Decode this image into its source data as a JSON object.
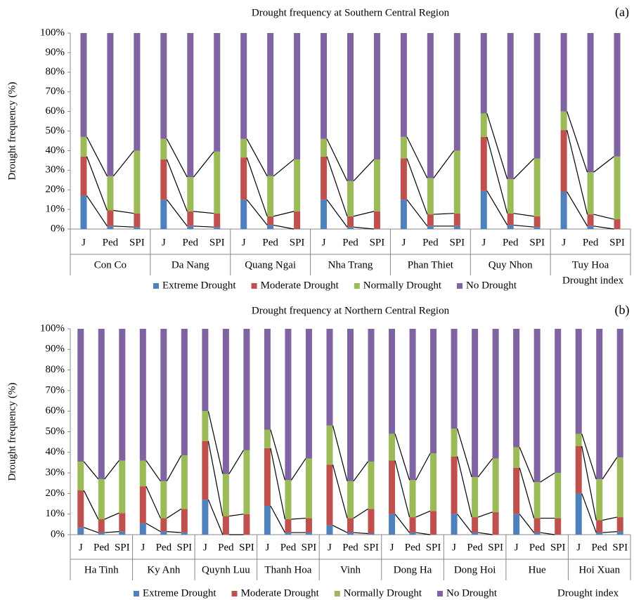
{
  "chart_data": [
    {
      "type": "bar",
      "stacked": true,
      "title": "Drought frequency at Southern Central Region",
      "panel_label": "(a)",
      "y_label": "Drought frequency (%)",
      "x_label": "Drought index",
      "categories": [
        "J",
        "Ped",
        "SPI",
        "J",
        "Ped",
        "SPI",
        "J",
        "Ped",
        "SPI",
        "J",
        "Ped",
        "SPI",
        "J",
        "Ped",
        "SPI",
        "J",
        "Ped",
        "SPI",
        "J",
        "Ped",
        "SPI"
      ],
      "groups": [
        "Con Co",
        "Da Nang",
        "Quang Ngai",
        "Nha Trang",
        "Phan Thiet",
        "Quy Nhon",
        "Tuy Hoa"
      ],
      "series": [
        {
          "name": "Extreme Drought",
          "color": "#4f81bd",
          "values": [
            17,
            1.5,
            1,
            15,
            1.5,
            1,
            15,
            2,
            0,
            15,
            1,
            0,
            15,
            1.5,
            1.5,
            19.5,
            2,
            1,
            19,
            1.5,
            0
          ]
        },
        {
          "name": "Moderate Drought",
          "color": "#c0504d",
          "values": [
            20,
            8,
            7,
            20.5,
            7.5,
            7,
            21.5,
            4.5,
            9,
            22,
            5.5,
            9,
            21,
            6,
            6.5,
            27.5,
            6,
            5.5,
            31.5,
            6,
            5
          ]
        },
        {
          "name": "Normally Drought",
          "color": "#9bbb59",
          "values": [
            10,
            17.5,
            32,
            10.5,
            17.5,
            31.5,
            9.5,
            20.5,
            26.5,
            9,
            18,
            26.5,
            11,
            18.5,
            32,
            12,
            17.5,
            29.5,
            9.5,
            21.5,
            32
          ]
        },
        {
          "name": "No Drought",
          "color": "#8064a2",
          "values": [
            53,
            73,
            60,
            54,
            73.5,
            60.5,
            54,
            73,
            64.5,
            54,
            75.5,
            64.5,
            53,
            74,
            60,
            41,
            74.5,
            64,
            40,
            71,
            63
          ]
        }
      ],
      "ylim": [
        0,
        100
      ],
      "yticks": [
        {
          "value": 0,
          "label": "0%"
        },
        {
          "value": 10,
          "label": "10%"
        },
        {
          "value": 20,
          "label": "20%"
        },
        {
          "value": 30,
          "label": "30%"
        },
        {
          "value": 40,
          "label": "40%"
        },
        {
          "value": 50,
          "label": "50%"
        },
        {
          "value": 60,
          "label": "60%"
        },
        {
          "value": 70,
          "label": "70%"
        },
        {
          "value": 80,
          "label": "80%"
        },
        {
          "value": 90,
          "label": "90%"
        },
        {
          "value": 100,
          "label": "100%"
        }
      ],
      "connector_lines": true
    },
    {
      "type": "bar",
      "stacked": true,
      "title": "Drought frequency at Northern Central Region",
      "panel_label": "(b)",
      "y_label": "Drought frequency (%)",
      "x_label": "Drought index",
      "categories": [
        "J",
        "Ped",
        "SPI",
        "J",
        "Ped",
        "SPI",
        "J",
        "Ped",
        "SPI",
        "J",
        "Ped",
        "SPI",
        "J",
        "Ped",
        "SPI",
        "J",
        "Ped",
        "SPI",
        "J",
        "Ped",
        "SPI",
        "J",
        "Ped",
        "SPI",
        "J",
        "Ped",
        "SPI"
      ],
      "groups": [
        "Ha Tinh",
        "Ky Anh",
        "Quynh Luu",
        "Thanh Hoa",
        "Vinh",
        "Dong Ha",
        "Dong Hoi",
        "Hue",
        "Hoi Xuan"
      ],
      "series": [
        {
          "name": "Extreme Drought",
          "color": "#4f81bd",
          "values": [
            3.5,
            1,
            1.5,
            5.5,
            1.5,
            1,
            17,
            0,
            0,
            14,
            1,
            1,
            4.5,
            1,
            0.5,
            10,
            1,
            0,
            10,
            1,
            0,
            10,
            1,
            0,
            20,
            1,
            1.5
          ]
        },
        {
          "name": "Moderate Drought",
          "color": "#c0504d",
          "values": [
            18,
            6.5,
            9,
            18,
            6.5,
            11.5,
            28.5,
            9,
            10,
            28,
            6.5,
            7,
            29.5,
            7,
            12,
            26,
            7.5,
            11.5,
            28,
            7.5,
            11,
            22.5,
            7,
            8,
            23,
            6,
            7
          ]
        },
        {
          "name": "Normally Drought",
          "color": "#9bbb59",
          "values": [
            14,
            19.5,
            25.5,
            12.5,
            18,
            26,
            14.5,
            20.5,
            31,
            9,
            19,
            29,
            19,
            18,
            23,
            13,
            18,
            28,
            13.5,
            19.5,
            26,
            10,
            17.5,
            22,
            6,
            20,
            29
          ]
        },
        {
          "name": "No Drought",
          "color": "#8064a2",
          "values": [
            64.5,
            73,
            64,
            64,
            74,
            61.5,
            40,
            70.5,
            59,
            49,
            73.5,
            63,
            47,
            74,
            64.5,
            51,
            73.5,
            60.5,
            48.5,
            72,
            63,
            57.5,
            74.5,
            70,
            51,
            73,
            62.5
          ]
        }
      ],
      "ylim": [
        0,
        100
      ],
      "yticks": [
        {
          "value": 0,
          "label": "0%"
        },
        {
          "value": 10,
          "label": "10%"
        },
        {
          "value": 20,
          "label": "20%"
        },
        {
          "value": 30,
          "label": "30%"
        },
        {
          "value": 40,
          "label": "40%"
        },
        {
          "value": 50,
          "label": "50%"
        },
        {
          "value": 60,
          "label": "60%"
        },
        {
          "value": 70,
          "label": "70%"
        },
        {
          "value": 80,
          "label": "80%"
        },
        {
          "value": 90,
          "label": "90%"
        },
        {
          "value": 100,
          "label": "100%"
        }
      ],
      "connector_lines": true
    }
  ]
}
